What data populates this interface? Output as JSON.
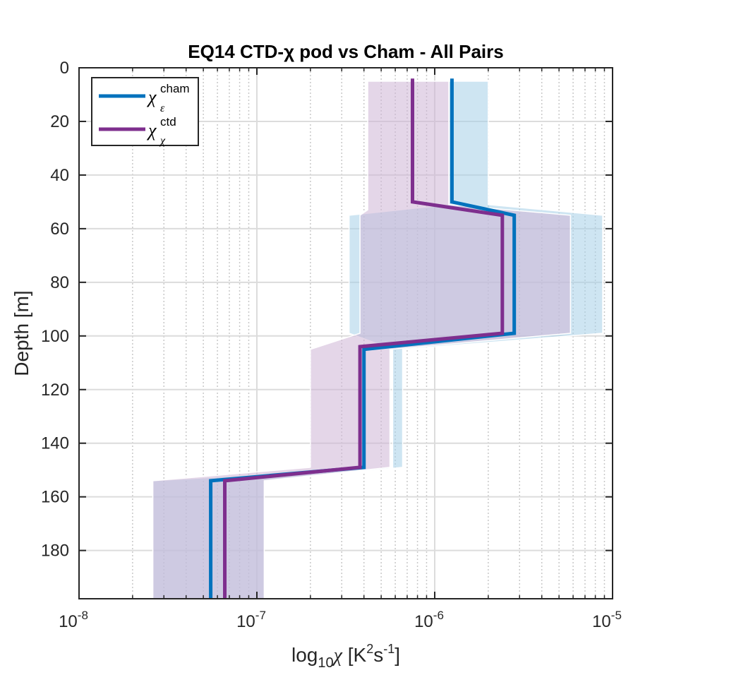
{
  "chart_data": {
    "type": "line",
    "title": "EQ14 CTD-χ pod vs Cham - All Pairs",
    "xlabel": "log10χ [K2s-1]",
    "xlabel_parts": {
      "pre": "log",
      "sub": "10",
      "chi": "χ",
      "open": " [K",
      "sup1": "2",
      "mid": "s",
      "sup2": "-1",
      "close": "]"
    },
    "ylabel": "Depth [m]",
    "x_scale": "log",
    "xlim": [
      1e-08,
      1e-05
    ],
    "ylim": [
      0,
      198
    ],
    "y_reversed": true,
    "grid": true,
    "minor_grid_x": true,
    "legend_position": "top-left",
    "xtick_values": [
      1e-08,
      1e-07,
      1e-06,
      1e-05
    ],
    "xtick_labels": [
      {
        "base": "10",
        "exp": "-8"
      },
      {
        "base": "10",
        "exp": "-7"
      },
      {
        "base": "10",
        "exp": "-6"
      },
      {
        "base": "10",
        "exp": "-5"
      }
    ],
    "ytick_values": [
      0,
      20,
      40,
      60,
      80,
      100,
      120,
      140,
      160,
      180
    ],
    "ytick_labels": [
      "0",
      "20",
      "40",
      "60",
      "80",
      "100",
      "120",
      "140",
      "160",
      "180"
    ],
    "series": [
      {
        "legend_symbol": "χ",
        "legend_sup": "cham",
        "legend_sub": "ε",
        "color": "#0072BD",
        "band_color": "#a6cfe8",
        "profile": [
          {
            "x": 1.25e-06,
            "y": 4
          },
          {
            "x": 1.25e-06,
            "y": 50
          },
          {
            "x": 2.8e-06,
            "y": 55
          },
          {
            "x": 2.8e-06,
            "y": 99
          },
          {
            "x": 4e-07,
            "y": 105
          },
          {
            "x": 4e-07,
            "y": 149
          },
          {
            "x": 5.5e-08,
            "y": 154
          },
          {
            "x": 5.5e-08,
            "y": 198
          }
        ],
        "band_lower": [
          {
            "x": 1.2e-06,
            "y": 5
          },
          {
            "x": 1.2e-06,
            "y": 51
          },
          {
            "x": 3.3e-07,
            "y": 55
          },
          {
            "x": 3.3e-07,
            "y": 99
          },
          {
            "x": 5.8e-07,
            "y": 105
          },
          {
            "x": 5.8e-07,
            "y": 149
          },
          {
            "x": 2.6e-08,
            "y": 154
          },
          {
            "x": 2.6e-08,
            "y": 198
          }
        ],
        "band_upper": [
          {
            "x": 2e-06,
            "y": 5
          },
          {
            "x": 2e-06,
            "y": 51
          },
          {
            "x": 8.8e-06,
            "y": 55
          },
          {
            "x": 8.8e-06,
            "y": 99
          },
          {
            "x": 6.6e-07,
            "y": 105
          },
          {
            "x": 6.6e-07,
            "y": 149
          },
          {
            "x": 1.1e-07,
            "y": 154
          },
          {
            "x": 1.1e-07,
            "y": 198
          }
        ]
      },
      {
        "legend_symbol": "χ",
        "legend_sup": "ctd",
        "legend_sub": "χ",
        "color": "#7E2F8E",
        "band_color": "#cdb5d6",
        "profile": [
          {
            "x": 7.5e-07,
            "y": 4
          },
          {
            "x": 7.5e-07,
            "y": 50
          },
          {
            "x": 2.4e-06,
            "y": 55
          },
          {
            "x": 2.4e-06,
            "y": 99
          },
          {
            "x": 3.8e-07,
            "y": 104
          },
          {
            "x": 3.8e-07,
            "y": 149
          },
          {
            "x": 6.6e-08,
            "y": 154
          },
          {
            "x": 6.6e-08,
            "y": 198
          }
        ],
        "band_lower": [
          {
            "x": 4.2e-07,
            "y": 5
          },
          {
            "x": 4.2e-07,
            "y": 53
          },
          {
            "x": 3.8e-07,
            "y": 55
          },
          {
            "x": 3.8e-07,
            "y": 99
          },
          {
            "x": 2e-07,
            "y": 105
          },
          {
            "x": 2e-07,
            "y": 149
          },
          {
            "x": 2.6e-08,
            "y": 154
          },
          {
            "x": 2.6e-08,
            "y": 198
          }
        ],
        "band_upper": [
          {
            "x": 1.2e-06,
            "y": 5
          },
          {
            "x": 1.2e-06,
            "y": 51
          },
          {
            "x": 5.8e-06,
            "y": 55
          },
          {
            "x": 5.8e-06,
            "y": 99
          },
          {
            "x": 5.6e-07,
            "y": 105
          },
          {
            "x": 5.6e-07,
            "y": 149
          },
          {
            "x": 1.1e-07,
            "y": 154
          },
          {
            "x": 1.1e-07,
            "y": 198
          }
        ]
      }
    ]
  }
}
